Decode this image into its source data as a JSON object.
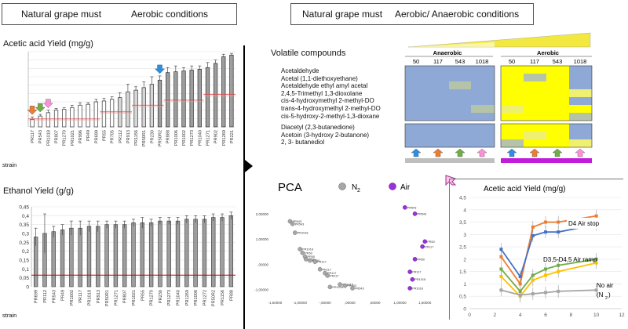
{
  "left_header": {
    "part1": "Natural grape must",
    "part2": "Aerobic conditions"
  },
  "right_header": {
    "part1": "Natural grape must",
    "part2": "Aerobic/ Anaerobic conditions"
  },
  "strain_label": "strain",
  "acetic_chart": {
    "title": "Acetic acid Yield (mg/g)",
    "strains": [
      "PR117",
      "PR543",
      "PR1018",
      "PR807",
      "PR1270",
      "PR1021",
      "PR996",
      "PR49",
      "PR699",
      "PR55",
      "PR705",
      "PR112",
      "PR913",
      "PR1156",
      "PR50R1",
      "PR230",
      "PR50R2",
      "PR888",
      "PR1006",
      "PR1002",
      "PR1273",
      "PR1040",
      "PR1271",
      "PR902",
      "PR1269",
      "PR221"
    ],
    "values": [
      0.9,
      1.3,
      1.7,
      2.0,
      2.1,
      2.3,
      2.6,
      2.7,
      3.0,
      3.1,
      3.3,
      3.5,
      4.2,
      4.4,
      4.7,
      5.1,
      5.6,
      6.5,
      6.6,
      6.7,
      6.8,
      6.9,
      7.1,
      7.6,
      8.4,
      8.6
    ],
    "errors": [
      0.3,
      0.2,
      0.3,
      0.2,
      0.2,
      0.3,
      0.3,
      0.2,
      0.3,
      0.3,
      0.3,
      0.6,
      0.9,
      0.4,
      0.7,
      0.9,
      0.5,
      0.6,
      0.7,
      0.4,
      0.5,
      0.4,
      0.6,
      0.4,
      0.3,
      0.2
    ],
    "ylim": [
      0,
      9
    ]
  },
  "ethanol_chart": {
    "title": "Ethanol Yield (g/g)",
    "y_ticks": [
      "0",
      "0,05",
      "0,1",
      "0,15",
      "0,2",
      "0,25",
      "0,3",
      "0,35",
      "0,4",
      "0,45"
    ],
    "strains": [
      "PR699",
      "PR112",
      "PR543",
      "PR49",
      "PR1002",
      "PR117",
      "PR1018",
      "PR913",
      "PR50R1",
      "PR1271",
      "PR807",
      "PR1021",
      "PR55",
      "PR1270",
      "PR230",
      "PR1273",
      "PR1040",
      "PR1269",
      "PR1006",
      "PR1272",
      "PR50R2",
      "PR1156",
      "PR88"
    ],
    "values": [
      0.28,
      0.3,
      0.31,
      0.32,
      0.33,
      0.33,
      0.34,
      0.34,
      0.35,
      0.35,
      0.35,
      0.36,
      0.36,
      0.36,
      0.37,
      0.37,
      0.37,
      0.38,
      0.38,
      0.38,
      0.39,
      0.39,
      0.4
    ],
    "errors": [
      0.05,
      0.11,
      0.03,
      0.03,
      0.04,
      0.04,
      0.03,
      0.03,
      0.02,
      0.02,
      0.02,
      0.02,
      0.03,
      0.02,
      0.02,
      0.02,
      0.02,
      0.02,
      0.02,
      0.02,
      0.02,
      0.02,
      0.02
    ],
    "ylim": [
      0,
      0.45
    ],
    "reference_line": 0.065
  },
  "volatile": {
    "title": "Volatile compounds",
    "group1": [
      "Acetaldehyde",
      "Acetal (1,1-diethoxyethane)",
      "Acetaldehyde ethyl amyl acetal",
      "2,4,5-Trimethyl 1,3-dioxolane",
      "cis-4-hydroxymethyl 2-methyl-DO",
      "trans-4-hydroxymethyl 2-methyl-DO",
      "cis-5-hydroxy-2-methyl-1,3-dioxane"
    ],
    "group2": [
      "Diacetyl (2,3-butanedione)",
      "Acetoin (3-hydroxy 2-butanone)",
      "2, 3- butanediol"
    ],
    "anaerobic_label": "Anaerobic",
    "aerobic_label": "Aerobic",
    "anaerobic_cols": [
      "50",
      "117",
      "543",
      "1018"
    ],
    "aerobic_cols": [
      "50",
      "117",
      "543",
      "1018"
    ]
  },
  "pca": {
    "title": "PCA",
    "legend_n2": "N",
    "legend_n2_sub": "2",
    "legend_air": "Air",
    "x_ticks": [
      "-1,50000",
      "-1,00000",
      "-,50000",
      ",00000",
      ",50000",
      "1,00000",
      "1,50000"
    ],
    "y_ticks": [
      "2,00000",
      "1,00000",
      ",00000",
      "-1,00000"
    ],
    "n2_labels": [
      "PR543",
      "PR543",
      "PR1018",
      "PR1018",
      "PR50",
      "PR50",
      "PR50",
      "PR50",
      "PR117",
      "PR117",
      "PR117",
      "PR117",
      "PR1018",
      "PR1018",
      "PR543",
      "PR543"
    ],
    "air_labels": [
      "PR543",
      "PR543",
      "PR50",
      "PR50",
      "PR117",
      "PR117",
      "PR1018",
      "PR1018"
    ]
  },
  "timecourse": {
    "title": "Acetic acid Yield (mg/g)",
    "x_ticks": [
      "0",
      "2",
      "4",
      "6",
      "8",
      "10",
      "12"
    ],
    "y_ticks": [
      "0",
      "0,5",
      "1",
      "1,5",
      "2",
      "2,5",
      "3",
      "3,5",
      "4",
      "4,5"
    ],
    "label_d4": "D4 Air stop",
    "label_ramp": "D3,5-D4,5 Air ramp",
    "label_noair_1": "No air",
    "label_noair_2": "(N",
    "label_noair_sub": "2",
    "label_noair_3": ")",
    "series": [
      {
        "name": "D4 Air stop",
        "color": "#ed7d31",
        "x": [
          2.5,
          4,
          5,
          6,
          7,
          10
        ],
        "y": [
          2.1,
          1.0,
          3.3,
          3.5,
          3.5,
          3.75
        ]
      },
      {
        "name": "",
        "color": "#4472c4",
        "x": [
          2.5,
          4,
          5,
          6,
          7,
          10
        ],
        "y": [
          2.4,
          1.3,
          2.95,
          3.1,
          3.1,
          3.4
        ]
      },
      {
        "name": "D3,5-D4,5 Air ramp",
        "color": "#70ad47",
        "x": [
          2.5,
          4,
          5,
          6,
          7,
          10
        ],
        "y": [
          1.6,
          0.7,
          1.35,
          1.6,
          1.75,
          2.0
        ]
      },
      {
        "name": "",
        "color": "#ffc000",
        "x": [
          2.5,
          4,
          5,
          6,
          7,
          10
        ],
        "y": [
          1.3,
          0.5,
          1.15,
          1.35,
          1.5,
          1.85
        ]
      },
      {
        "name": "No air (N2)",
        "color": "#a5a5a5",
        "x": [
          2.5,
          4,
          5,
          6,
          7,
          10
        ],
        "y": [
          0.75,
          0.55,
          0.6,
          0.65,
          0.7,
          0.75
        ]
      }
    ],
    "xlim": [
      0,
      12
    ],
    "ylim": [
      0,
      4.5
    ]
  },
  "chart_data": [
    {
      "type": "bar",
      "title": "Acetic acid Yield (mg/g)",
      "xlabel": "strain",
      "categories": [
        "PR117",
        "PR543",
        "PR1018",
        "PR807",
        "PR1270",
        "PR1021",
        "PR996",
        "PR49",
        "PR699",
        "PR55",
        "PR705",
        "PR112",
        "PR913",
        "PR1156",
        "PR50R1",
        "PR230",
        "PR50R2",
        "PR888",
        "PR1006",
        "PR1002",
        "PR1273",
        "PR1040",
        "PR1271",
        "PR902",
        "PR1269",
        "PR221"
      ],
      "values": [
        0.9,
        1.3,
        1.7,
        2.0,
        2.1,
        2.3,
        2.6,
        2.7,
        3.0,
        3.1,
        3.3,
        3.5,
        4.2,
        4.4,
        4.7,
        5.1,
        5.6,
        6.5,
        6.6,
        6.7,
        6.8,
        6.9,
        7.1,
        7.6,
        8.4,
        8.6
      ],
      "ylim": [
        0,
        9
      ]
    },
    {
      "type": "bar",
      "title": "Ethanol Yield (g/g)",
      "xlabel": "strain",
      "categories": [
        "PR699",
        "PR112",
        "PR543",
        "PR49",
        "PR1002",
        "PR117",
        "PR1018",
        "PR913",
        "PR50R1",
        "PR1271",
        "PR807",
        "PR1021",
        "PR55",
        "PR1270",
        "PR230",
        "PR1273",
        "PR1040",
        "PR1269",
        "PR1006",
        "PR1272",
        "PR50R2",
        "PR1156",
        "PR88"
      ],
      "values": [
        0.28,
        0.3,
        0.31,
        0.32,
        0.33,
        0.33,
        0.34,
        0.34,
        0.35,
        0.35,
        0.35,
        0.36,
        0.36,
        0.36,
        0.37,
        0.37,
        0.37,
        0.38,
        0.38,
        0.38,
        0.39,
        0.39,
        0.4
      ],
      "ylim": [
        0,
        0.45
      ]
    },
    {
      "type": "scatter",
      "title": "PCA",
      "series": [
        {
          "name": "N2",
          "x": [
            -1.2,
            -1.15,
            -1.1,
            -1.0,
            -0.95,
            -0.9,
            -0.88,
            -0.8,
            -0.7,
            -0.6,
            -0.5,
            -0.45,
            -0.4,
            -0.2,
            -0.1,
            0.05
          ],
          "y": [
            1.7,
            1.6,
            1.25,
            0.6,
            0.45,
            0.3,
            0.2,
            0.15,
            0.1,
            -0.2,
            -0.35,
            -0.45,
            -0.9,
            -0.8,
            -0.85,
            -0.95
          ]
        },
        {
          "name": "Air",
          "x": [
            1.1,
            1.3,
            1.5,
            1.3,
            1.45,
            1.2,
            1.25,
            1.2
          ],
          "y": [
            2.25,
            2.0,
            0.9,
            0.2,
            0.7,
            -0.3,
            -0.6,
            -0.95
          ]
        }
      ],
      "xlim": [
        -1.6,
        1.7
      ],
      "ylim": [
        -1.2,
        2.4
      ]
    },
    {
      "type": "line",
      "title": "Acetic acid Yield (mg/g)",
      "xlim": [
        0,
        12
      ],
      "ylim": [
        0,
        4.5
      ],
      "series": [
        {
          "name": "D4 Air stop",
          "x": [
            2.5,
            4,
            5,
            6,
            7,
            10
          ],
          "y": [
            2.1,
            1.0,
            3.3,
            3.5,
            3.5,
            3.75
          ]
        },
        {
          "name": "",
          "x": [
            2.5,
            4,
            5,
            6,
            7,
            10
          ],
          "y": [
            2.4,
            1.3,
            2.95,
            3.1,
            3.1,
            3.4
          ]
        },
        {
          "name": "D3,5-D4,5 Air ramp",
          "x": [
            2.5,
            4,
            5,
            6,
            7,
            10
          ],
          "y": [
            1.6,
            0.7,
            1.35,
            1.6,
            1.75,
            2.0
          ]
        },
        {
          "name": "",
          "x": [
            2.5,
            4,
            5,
            6,
            7,
            10
          ],
          "y": [
            1.3,
            0.5,
            1.15,
            1.35,
            1.5,
            1.85
          ]
        },
        {
          "name": "No air (N2)",
          "x": [
            2.5,
            4,
            5,
            6,
            7,
            10
          ],
          "y": [
            0.75,
            0.55,
            0.6,
            0.65,
            0.7,
            0.75
          ]
        }
      ]
    }
  ]
}
